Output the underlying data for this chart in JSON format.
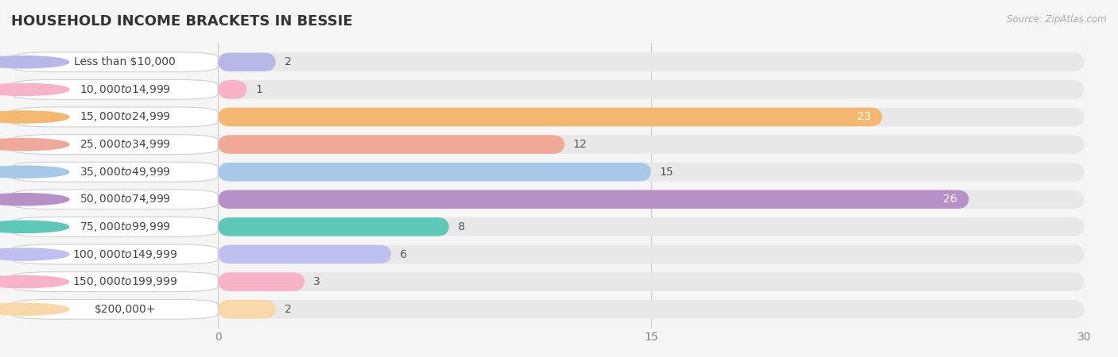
{
  "title": "HOUSEHOLD INCOME BRACKETS IN BESSIE",
  "source": "Source: ZipAtlas.com",
  "categories": [
    "Less than $10,000",
    "$10,000 to $14,999",
    "$15,000 to $24,999",
    "$25,000 to $34,999",
    "$35,000 to $49,999",
    "$50,000 to $74,999",
    "$75,000 to $99,999",
    "$100,000 to $149,999",
    "$150,000 to $199,999",
    "$200,000+"
  ],
  "values": [
    2,
    1,
    23,
    12,
    15,
    26,
    8,
    6,
    3,
    2
  ],
  "bar_colors": [
    "#b8b8e8",
    "#f9b3c8",
    "#f5b870",
    "#f0a898",
    "#a8c8e8",
    "#b890c8",
    "#5ec8b8",
    "#c0c0f0",
    "#f9b3c8",
    "#f8d8a8"
  ],
  "xlim": [
    0,
    30
  ],
  "xticks": [
    0,
    15,
    30
  ],
  "background_color": "#f5f5f5",
  "bar_bg_color": "#e8e8e8",
  "title_fontsize": 13,
  "label_fontsize": 10,
  "value_fontsize": 10,
  "bar_height": 0.68,
  "bar_gap": 0.05
}
